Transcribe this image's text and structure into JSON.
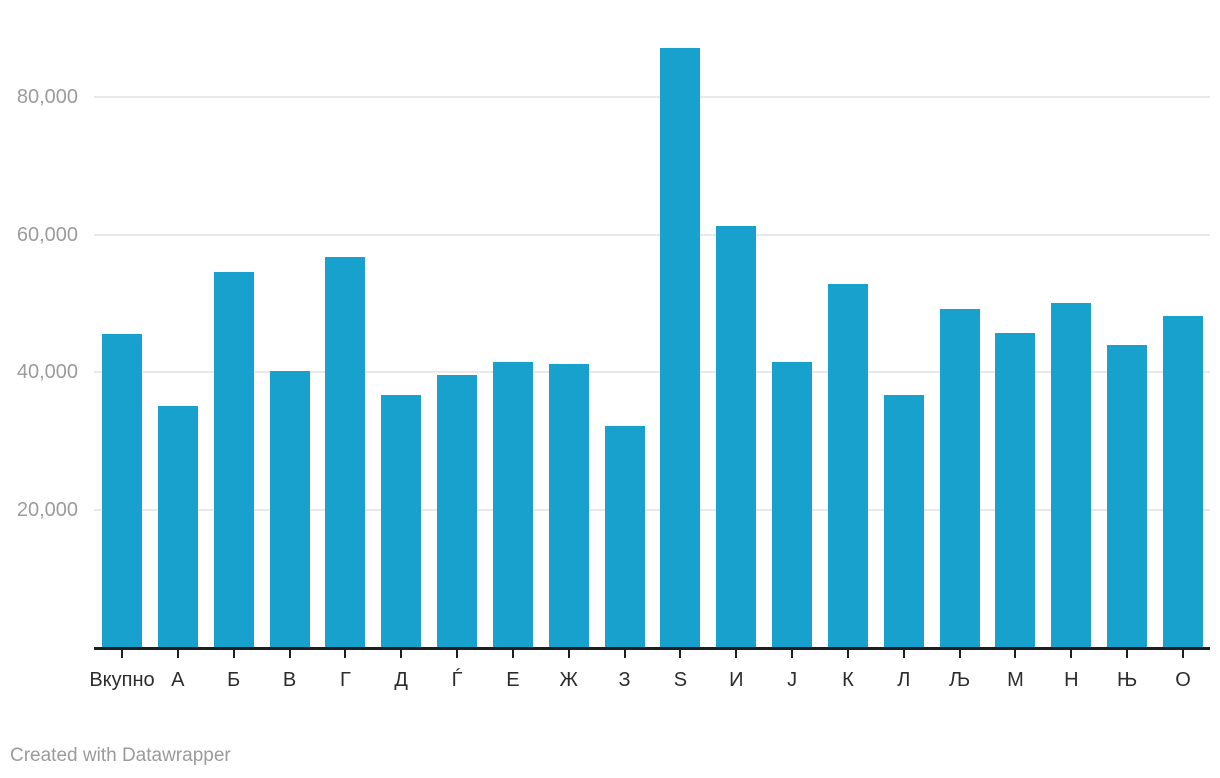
{
  "chart_data": {
    "type": "bar",
    "categories": [
      "Вкупно",
      "А",
      "Б",
      "В",
      "Г",
      "Д",
      "Ѓ",
      "Е",
      "Ж",
      "З",
      "Ѕ",
      "И",
      "Ј",
      "К",
      "Л",
      "Љ",
      "М",
      "Н",
      "Њ",
      "О"
    ],
    "values": [
      45500,
      35000,
      54600,
      40200,
      56700,
      36600,
      39500,
      41500,
      41200,
      32200,
      87200,
      61200,
      41400,
      52800,
      36600,
      49100,
      45700,
      50000,
      44000,
      48100
    ],
    "title": "",
    "xlabel": "",
    "ylabel": "",
    "ylim": [
      0,
      94000
    ],
    "yticks": [
      20000,
      40000,
      60000,
      80000
    ],
    "ytick_labels": [
      "20,000",
      "40,000",
      "60,000",
      "80,000"
    ],
    "grid": true,
    "legend": "none",
    "bar_color": "#18a1cd"
  },
  "footer": {
    "credit": "Created with Datawrapper"
  },
  "colors": {
    "accent": "#18a1cd",
    "gridline": "#e8e8e8",
    "axis": "#1f1f1f",
    "y_label": "#9c9c9c",
    "x_label": "#2d2d2d",
    "footer": "#9b9b9b",
    "background": "#ffffff"
  }
}
